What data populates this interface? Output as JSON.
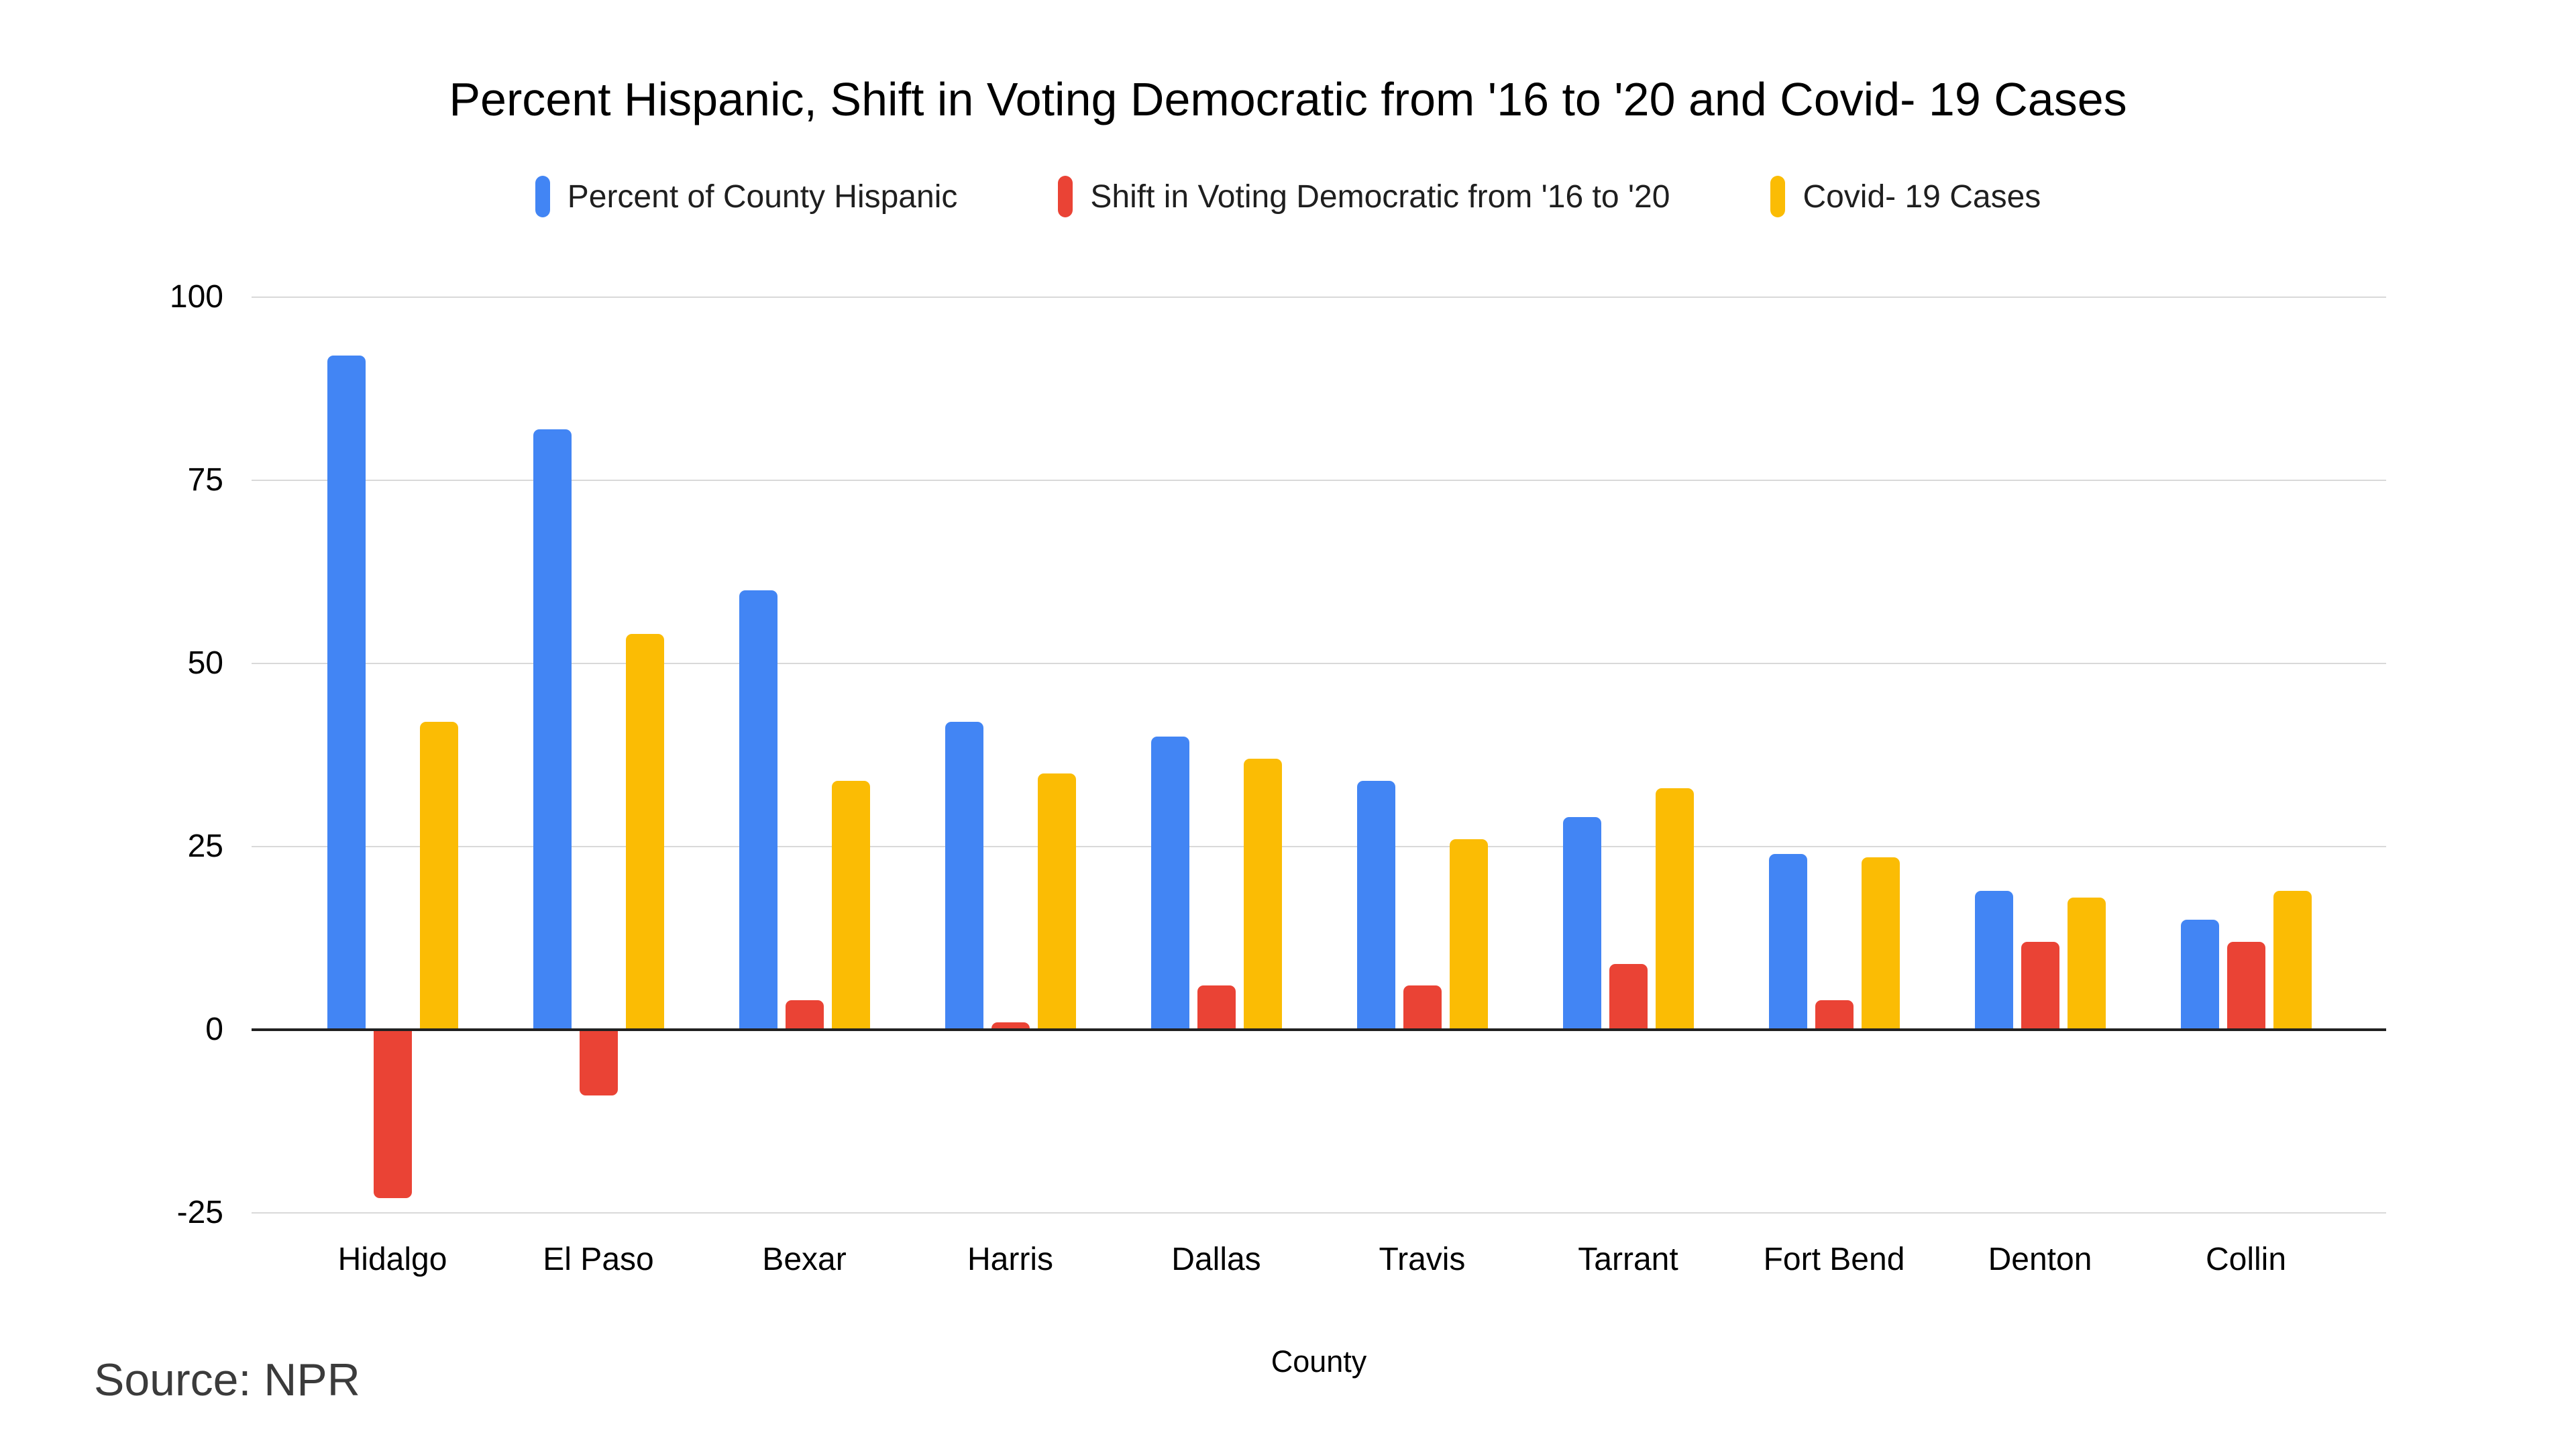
{
  "source_note": "Source: NPR",
  "chart_data": {
    "type": "bar",
    "title": "Percent Hispanic, Shift in Voting Democratic from '16 to '20 and Covid- 19 Cases",
    "xlabel": "County",
    "categories": [
      "Hidalgo",
      "El Paso",
      "Bexar",
      "Harris",
      "Dallas",
      "Travis",
      "Tarrant",
      "Fort Bend",
      "Denton",
      "Collin"
    ],
    "series": [
      {
        "name": "Percent of County Hispanic",
        "color": "#4285F4",
        "values": [
          92,
          82,
          60,
          42,
          40,
          34,
          29,
          24,
          19,
          15
        ]
      },
      {
        "name": "Shift in Voting Democratic from '16 to '20",
        "color": "#EA4335",
        "values": [
          -23,
          -9,
          4,
          1,
          6,
          6,
          9,
          4,
          12,
          12
        ]
      },
      {
        "name": "Covid- 19 Cases",
        "color": "#FBBC04",
        "values": [
          42,
          54,
          34,
          35,
          37,
          26,
          33,
          23.5,
          18,
          19
        ]
      }
    ],
    "y_ticks": [
      100,
      75,
      50,
      25,
      0,
      -25
    ],
    "ylim": [
      -25,
      100
    ],
    "grid": true,
    "legend_position": "top",
    "axis_color": "#212121",
    "gridline_color": "#d9d9d9"
  }
}
